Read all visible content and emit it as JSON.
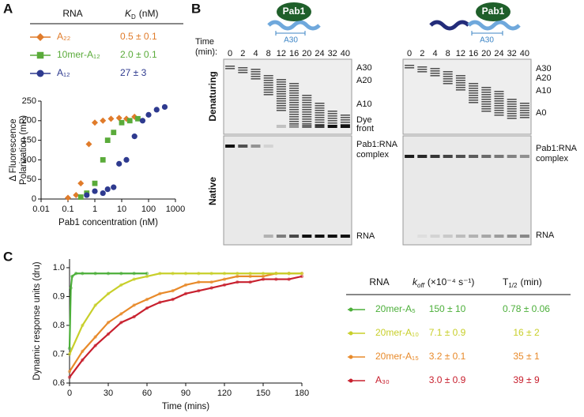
{
  "panel_labels": [
    "A",
    "B",
    "C"
  ],
  "chart_data": [
    {
      "type": "scatter",
      "xscale": "log",
      "xlabel": "Pab1 concentration (nM)",
      "ylabel": [
        "Δ Fluorescence",
        "Polarization (mP)"
      ],
      "xlim": [
        0.01,
        1000
      ],
      "xticks": [
        0.01,
        0.1,
        1,
        10,
        100,
        1000
      ],
      "ylim": [
        0,
        250
      ],
      "yticks": [
        0,
        50,
        100,
        150,
        200,
        250
      ],
      "table_header": {
        "rna": "RNA",
        "kd_symbol": "K",
        "kd_sub": "D",
        "kd_unit": "(nM)"
      },
      "series": [
        {
          "name": "A₂₂",
          "color": "#e07b2a",
          "marker": "diamond",
          "kd": "0.5 ± 0.1",
          "x": [
            0.1,
            0.2,
            0.3,
            0.6,
            1,
            2,
            4,
            8,
            15,
            30
          ],
          "values": [
            3,
            10,
            40,
            140,
            195,
            200,
            205,
            207,
            205,
            210
          ]
        },
        {
          "name": "10mer-A₁₂",
          "color": "#5aab3a",
          "marker": "square",
          "kd": "2.0 ± 0.1",
          "x": [
            0.3,
            0.5,
            1,
            2,
            3,
            5,
            10,
            20,
            40
          ],
          "values": [
            5,
            15,
            40,
            100,
            150,
            170,
            195,
            200,
            205
          ]
        },
        {
          "name": "A₁₂",
          "color": "#2e3a8f",
          "marker": "circle",
          "kd": "27 ± 3",
          "x": [
            0.5,
            1,
            2,
            3,
            5,
            8,
            15,
            30,
            60,
            100,
            200,
            400
          ],
          "values": [
            10,
            20,
            15,
            25,
            30,
            90,
            100,
            160,
            200,
            215,
            228,
            235
          ]
        }
      ]
    },
    {
      "type": "line",
      "xlabel": "Time (mins)",
      "ylabel": [
        "Dynamic response units (dru)"
      ],
      "xlim": [
        0,
        180
      ],
      "xticks": [
        0,
        30,
        60,
        90,
        120,
        150,
        180
      ],
      "ylim": [
        0.6,
        1.03
      ],
      "yticks": [
        0.6,
        0.7,
        0.8,
        0.9,
        {
          "value": 1,
          "label": "1.0"
        }
      ],
      "table_header": {
        "rna": "RNA",
        "koff_symbol": "k",
        "koff_sub": "off",
        "koff_unit": "(×10⁻⁴ s⁻¹)",
        "thalf_symbol": "T",
        "thalf_sub": "1/2",
        "thalf_unit": "(min)"
      },
      "series": [
        {
          "name": "20mer-A₅",
          "color": "#4caf3a",
          "koff": "150 ± 10",
          "t_half": "0.78 ± 0.06",
          "x": [
            0,
            1,
            2,
            5,
            10,
            20,
            30,
            40,
            50,
            60
          ],
          "values": [
            0.72,
            0.93,
            0.97,
            0.98,
            0.98,
            0.98,
            0.98,
            0.98,
            0.98,
            0.98
          ]
        },
        {
          "name": "20mer-A₁₀",
          "color": "#c8cf2a",
          "koff": "7.1 ± 0.9",
          "t_half": "16 ± 2",
          "x": [
            0,
            10,
            20,
            30,
            40,
            50,
            60,
            70,
            80,
            90,
            100,
            110,
            120,
            130,
            140,
            150,
            160,
            170,
            180
          ],
          "values": [
            0.7,
            0.8,
            0.87,
            0.91,
            0.94,
            0.96,
            0.97,
            0.98,
            0.98,
            0.98,
            0.98,
            0.98,
            0.98,
            0.98,
            0.98,
            0.98,
            0.98,
            0.98,
            0.98
          ]
        },
        {
          "name": "20mer-A₁₅",
          "color": "#e88a2a",
          "koff": "3.2 ± 0.1",
          "t_half": "35 ± 1",
          "x": [
            0,
            10,
            20,
            30,
            40,
            50,
            60,
            70,
            80,
            90,
            100,
            110,
            120,
            130,
            140,
            150,
            160,
            170,
            180
          ],
          "values": [
            0.64,
            0.71,
            0.76,
            0.81,
            0.84,
            0.87,
            0.89,
            0.91,
            0.92,
            0.94,
            0.95,
            0.95,
            0.96,
            0.97,
            0.97,
            0.97,
            0.98,
            0.98,
            0.98
          ]
        },
        {
          "name": "A₃₀",
          "color": "#c8202e",
          "koff": "3.0 ± 0.9",
          "t_half": "39 ± 9",
          "x": [
            0,
            10,
            20,
            30,
            40,
            50,
            60,
            70,
            80,
            90,
            100,
            110,
            120,
            130,
            140,
            150,
            160,
            170,
            180
          ],
          "values": [
            0.62,
            0.68,
            0.73,
            0.77,
            0.81,
            0.83,
            0.86,
            0.88,
            0.89,
            0.91,
            0.92,
            0.93,
            0.94,
            0.95,
            0.95,
            0.96,
            0.96,
            0.96,
            0.97
          ]
        }
      ]
    }
  ],
  "panel_b": {
    "protein": "Pab1",
    "rna_span": "A30",
    "time_label": [
      "Time",
      "(min):"
    ],
    "lanes": [
      0,
      2,
      4,
      8,
      12,
      16,
      20,
      24,
      32,
      40
    ],
    "rows": [
      "Denaturing",
      "Native"
    ],
    "gels": [
      {
        "denaturing_labels": [
          [
            "A30"
          ],
          [
            "A20"
          ],
          [
            "A10"
          ],
          [
            "Dye",
            "front"
          ]
        ],
        "native_labels": [
          [
            "Pab1:RNA",
            "complex"
          ],
          [
            "RNA"
          ]
        ]
      },
      {
        "denaturing_labels": [
          [
            "A30"
          ],
          [
            "A20"
          ],
          [
            "A10"
          ],
          [
            "A0"
          ]
        ],
        "native_labels": [
          [
            "Pab1:RNA",
            "complex"
          ],
          [
            "RNA"
          ]
        ]
      }
    ]
  }
}
